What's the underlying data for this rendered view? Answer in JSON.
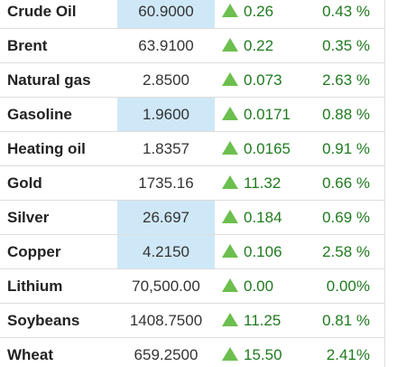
{
  "table": {
    "rows": [
      {
        "name": "Crude Oil",
        "price": "60.9000",
        "change": "0.26",
        "percent": "0.43 %",
        "highlight": true
      },
      {
        "name": "Brent",
        "price": "63.9100",
        "change": "0.22",
        "percent": "0.35 %",
        "highlight": false
      },
      {
        "name": "Natural gas",
        "price": "2.8500",
        "change": "0.073",
        "percent": "2.63 %",
        "highlight": false
      },
      {
        "name": "Gasoline",
        "price": "1.9600",
        "change": "0.0171",
        "percent": "0.88 %",
        "highlight": true
      },
      {
        "name": "Heating oil",
        "price": "1.8357",
        "change": "0.0165",
        "percent": "0.91 %",
        "highlight": false
      },
      {
        "name": "Gold",
        "price": "1735.16",
        "change": "11.32",
        "percent": "0.66 %",
        "highlight": false
      },
      {
        "name": "Silver",
        "price": "26.697",
        "change": "0.184",
        "percent": "0.69 %",
        "highlight": true
      },
      {
        "name": "Copper",
        "price": "4.2150",
        "change": "0.106",
        "percent": "2.58 %",
        "highlight": true
      },
      {
        "name": "Lithium",
        "price": "70,500.00",
        "change": "0.00",
        "percent": "0.00%",
        "highlight": false
      },
      {
        "name": "Soybeans",
        "price": "1408.7500",
        "change": "11.25",
        "percent": "0.81 %",
        "highlight": false
      },
      {
        "name": "Wheat",
        "price": "659.2500",
        "change": "15.50",
        "percent": "2.41%",
        "highlight": false
      }
    ]
  }
}
